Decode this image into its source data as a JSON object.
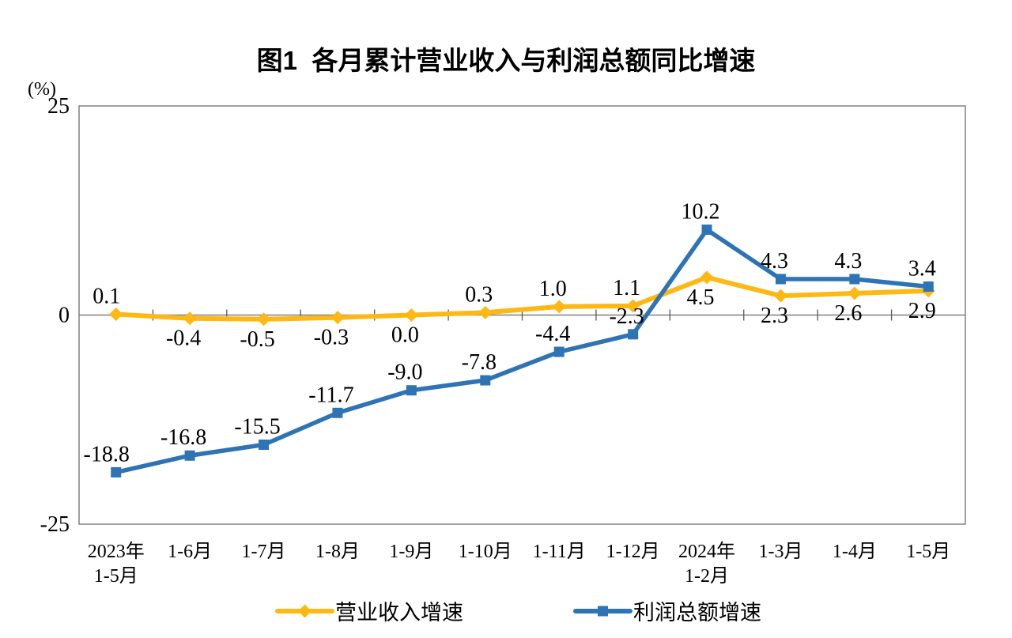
{
  "chart_data": {
    "type": "line",
    "title": "图1  各月累计营业收入与利润总额同比增速",
    "y_unit_label": "(%)",
    "ylim": [
      -25,
      25
    ],
    "yticks": [
      25,
      0,
      -25
    ],
    "grid": "off",
    "legend_position": "bottom",
    "categories": [
      "2023年\n1-5月",
      "1-6月",
      "1-7月",
      "1-8月",
      "1-9月",
      "1-10月",
      "1-11月",
      "1-12月",
      "2024年\n1-2月",
      "1-3月",
      "1-4月",
      "1-5月"
    ],
    "series": [
      {
        "name": "营业收入增速",
        "color": "#FDB813",
        "marker": "diamond",
        "values": [
          0.1,
          -0.4,
          -0.5,
          -0.3,
          0.0,
          0.3,
          1.0,
          1.1,
          4.5,
          2.3,
          2.6,
          2.9
        ],
        "label_side": [
          "above",
          "below",
          "below",
          "below",
          "below",
          "above",
          "above",
          "above",
          "below",
          "below",
          "below",
          "below"
        ]
      },
      {
        "name": "利润总额增速",
        "color": "#2E74B5",
        "marker": "square",
        "values": [
          -18.8,
          -16.8,
          -15.5,
          -11.7,
          -9.0,
          -7.8,
          -4.4,
          -2.3,
          10.2,
          4.3,
          4.3,
          3.4
        ],
        "label_side": [
          "above",
          "above",
          "above",
          "above",
          "above",
          "above",
          "above",
          "above",
          "above",
          "above",
          "above",
          "above"
        ]
      }
    ]
  }
}
